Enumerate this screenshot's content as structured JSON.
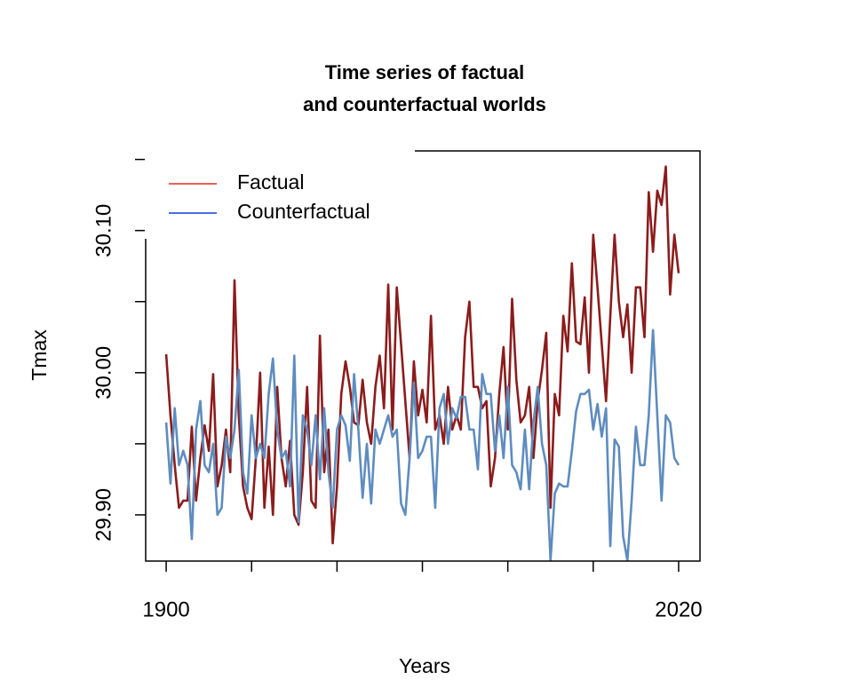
{
  "chart_data": {
    "type": "line",
    "title": [
      "Time series of factual",
      "and counterfactual worlds"
    ],
    "xlabel": "Years",
    "ylabel": "Tmax",
    "x": [
      1900,
      1901,
      1902,
      1903,
      1904,
      1905,
      1906,
      1907,
      1908,
      1909,
      1910,
      1911,
      1912,
      1913,
      1914,
      1915,
      1916,
      1917,
      1918,
      1919,
      1920,
      1921,
      1922,
      1923,
      1924,
      1925,
      1926,
      1927,
      1928,
      1929,
      1930,
      1931,
      1932,
      1933,
      1934,
      1935,
      1936,
      1937,
      1938,
      1939,
      1940,
      1941,
      1942,
      1943,
      1944,
      1945,
      1946,
      1947,
      1948,
      1949,
      1950,
      1951,
      1952,
      1953,
      1954,
      1955,
      1956,
      1957,
      1958,
      1959,
      1960,
      1961,
      1962,
      1963,
      1964,
      1965,
      1966,
      1967,
      1968,
      1969,
      1970,
      1971,
      1972,
      1973,
      1974,
      1975,
      1976,
      1977,
      1978,
      1979,
      1980,
      1981,
      1982,
      1983,
      1984,
      1985,
      1986,
      1987,
      1988,
      1989,
      1990,
      1991,
      1992,
      1993,
      1994,
      1995,
      1996,
      1997,
      1998,
      1999,
      2000,
      2001,
      2002,
      2003,
      2004,
      2005,
      2006,
      2007,
      2008,
      2009,
      2010,
      2011,
      2012,
      2013,
      2014,
      2015,
      2016,
      2017,
      2018,
      2019,
      2020
    ],
    "series": [
      {
        "name": "Factual",
        "color": "#8b1c1c",
        "legend_color": "#e8605a",
        "values": [
          30.013,
          29.97,
          29.935,
          29.905,
          29.91,
          29.91,
          29.962,
          29.91,
          29.94,
          29.963,
          29.945,
          29.999,
          29.92,
          29.935,
          29.96,
          29.93,
          30.065,
          29.97,
          29.92,
          29.905,
          29.897,
          29.94,
          30.0,
          29.905,
          29.948,
          29.9,
          29.99,
          29.94,
          29.92,
          29.952,
          29.9,
          29.893,
          29.93,
          29.99,
          29.91,
          29.905,
          30.026,
          29.93,
          29.96,
          29.88,
          29.92,
          29.985,
          30.008,
          29.99,
          29.965,
          29.963,
          29.995,
          29.965,
          29.95,
          29.99,
          30.012,
          29.975,
          30.062,
          29.96,
          30.06,
          30.02,
          29.98,
          29.94,
          30.008,
          29.97,
          29.988,
          29.965,
          30.04,
          29.96,
          29.97,
          29.95,
          29.99,
          29.96,
          29.97,
          29.96,
          30.025,
          30.05,
          29.99,
          29.99,
          29.975,
          29.98,
          29.92,
          29.94,
          29.985,
          30.018,
          29.96,
          30.052,
          29.995,
          29.965,
          29.97,
          29.99,
          29.94,
          29.98,
          30.002,
          30.028,
          29.905,
          29.985,
          29.97,
          30.04,
          30.015,
          30.077,
          30.022,
          30.02,
          30.053,
          30.0,
          30.097,
          30.06,
          30.02,
          29.98,
          30.04,
          30.097,
          30.05,
          30.025,
          30.048,
          30.0,
          30.06,
          30.06,
          30.025,
          30.127,
          30.085,
          30.128,
          30.118,
          30.145,
          30.055,
          30.097,
          30.07
        ]
      },
      {
        "name": "Counterfactual",
        "color": "#5e8cbf",
        "legend_color": "#4a6fe3",
        "values": [
          29.965,
          29.922,
          29.975,
          29.935,
          29.945,
          29.935,
          29.883,
          29.96,
          29.98,
          29.935,
          29.93,
          29.95,
          29.9,
          29.905,
          29.955,
          29.94,
          29.96,
          30.002,
          29.93,
          29.915,
          29.97,
          29.94,
          29.95,
          29.94,
          29.985,
          30.01,
          29.96,
          29.94,
          29.945,
          29.92,
          30.012,
          29.895,
          29.97,
          29.96,
          29.935,
          29.97,
          29.925,
          29.975,
          29.93,
          29.905,
          29.96,
          29.97,
          29.963,
          29.938,
          29.999,
          29.96,
          29.912,
          29.95,
          29.908,
          29.96,
          29.95,
          29.96,
          29.97,
          29.955,
          29.96,
          29.908,
          29.9,
          29.94,
          29.993,
          29.94,
          29.945,
          29.955,
          29.955,
          29.905,
          29.975,
          29.985,
          29.95,
          29.975,
          29.968,
          29.983,
          29.983,
          29.96,
          29.96,
          29.932,
          29.999,
          29.985,
          29.985,
          29.945,
          29.97,
          29.94,
          29.99,
          29.935,
          29.93,
          29.918,
          29.96,
          29.918,
          29.965,
          29.99,
          29.95,
          29.935,
          29.868,
          29.915,
          29.922,
          29.92,
          29.92,
          29.945,
          29.973,
          29.985,
          29.985,
          29.988,
          29.96,
          29.978,
          29.955,
          29.975,
          29.878,
          29.953,
          29.948,
          29.885,
          29.868,
          29.91,
          29.962,
          29.935,
          29.935,
          29.97,
          30.03,
          29.97,
          29.91,
          29.97,
          29.965,
          29.94,
          29.935
        ]
      }
    ],
    "xlim": [
      1895.2,
      2025
    ],
    "ylim": [
      29.8675,
      30.156
    ],
    "xticks": [
      1900,
      2020
    ],
    "xminor_ticks": [
      1920,
      1940,
      1960,
      1980,
      2000
    ],
    "yticks": [
      {
        "value": 29.9,
        "label": "29.90"
      },
      {
        "value": 30.0,
        "label": "30.00"
      },
      {
        "value": 30.1,
        "label": "30.10"
      }
    ],
    "yminor_ticks": [
      29.95,
      30.05,
      30.15
    ],
    "legend": "top-left",
    "grid": false
  }
}
